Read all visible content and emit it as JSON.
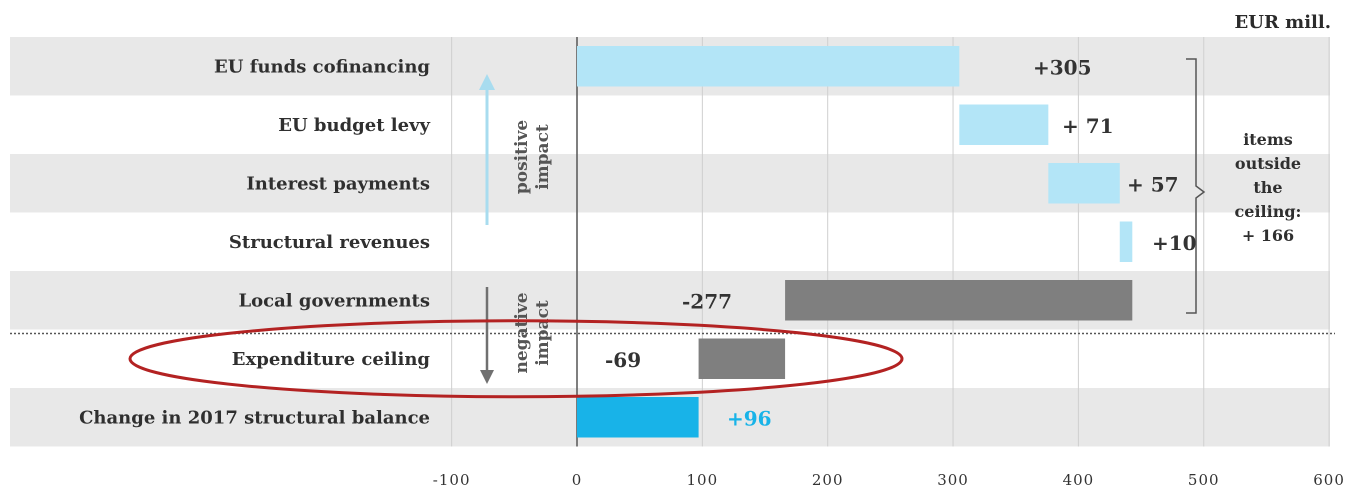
{
  "unit_label": "EUR mill.",
  "positive_label": [
    "positive",
    "impact"
  ],
  "negative_label": [
    "negative",
    "impact"
  ],
  "ceiling_note": [
    "items",
    "outside",
    "the",
    "ceiling:",
    "+ 166"
  ],
  "colors": {
    "positive": "#b3e5f7",
    "negative": "#7f7f7f",
    "total": "#18b3e8",
    "band": "#e8e8e8",
    "ellipse": "#b32222",
    "arrow_positive": "#a8dcef",
    "arrow_negative": "#707070"
  },
  "chart_data": {
    "type": "bar",
    "subtype": "waterfall-horizontal",
    "unit": "EUR mill.",
    "xlim": [
      -100,
      600
    ],
    "xticks": [
      -100,
      0,
      100,
      200,
      300,
      400,
      500,
      600
    ],
    "xtick_labels": [
      "-100",
      "0",
      "100",
      "200",
      "300",
      "400",
      "500",
      "600"
    ],
    "grid": "vertical",
    "bars": [
      {
        "category": "EU funds cofinancing",
        "start": 0,
        "end": 305,
        "value": 305,
        "label": "+305",
        "kind": "positive"
      },
      {
        "category": "EU budget levy",
        "start": 305,
        "end": 376,
        "value": 71,
        "label": "+ 71",
        "kind": "positive"
      },
      {
        "category": "Interest payments",
        "start": 376,
        "end": 433,
        "value": 57,
        "label": "+ 57",
        "kind": "positive"
      },
      {
        "category": "Structural revenues",
        "start": 433,
        "end": 443,
        "value": 10,
        "label": "+10",
        "kind": "positive"
      },
      {
        "category": "Local governments",
        "start": 166,
        "end": 443,
        "value": -277,
        "label": "-277",
        "kind": "negative"
      },
      {
        "category": "Expenditure ceiling",
        "start": 97,
        "end": 166,
        "value": -69,
        "label": "-69",
        "kind": "negative"
      },
      {
        "category": "Change in 2017 structural balance",
        "start": 0,
        "end": 97,
        "value": 96,
        "label": "+96",
        "kind": "total"
      }
    ]
  }
}
